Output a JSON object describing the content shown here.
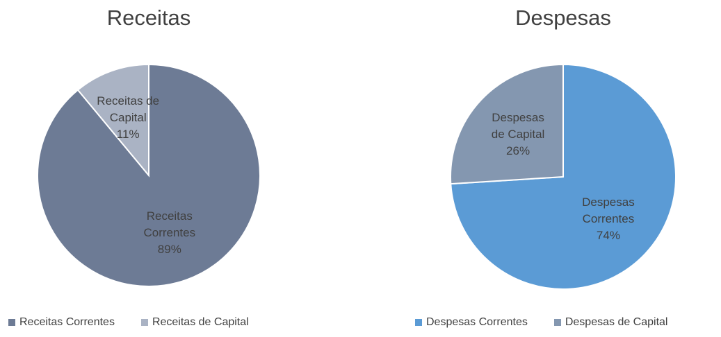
{
  "chart_data": [
    {
      "type": "pie",
      "title": "Receitas",
      "categories": [
        "Receitas Correntes",
        "Receitas de Capital"
      ],
      "values": [
        89,
        11
      ],
      "value_labels": [
        "89%",
        "11%"
      ],
      "colors": [
        "#6d7b95",
        "#aab3c4"
      ],
      "legend": "bottom"
    },
    {
      "type": "pie",
      "title": "Despesas",
      "categories": [
        "Despesas Correntes",
        "Despesas de Capital"
      ],
      "values": [
        74,
        26
      ],
      "value_labels": [
        "74%",
        "26%"
      ],
      "colors": [
        "#5b9bd5",
        "#8497b0"
      ],
      "legend": "bottom"
    }
  ]
}
